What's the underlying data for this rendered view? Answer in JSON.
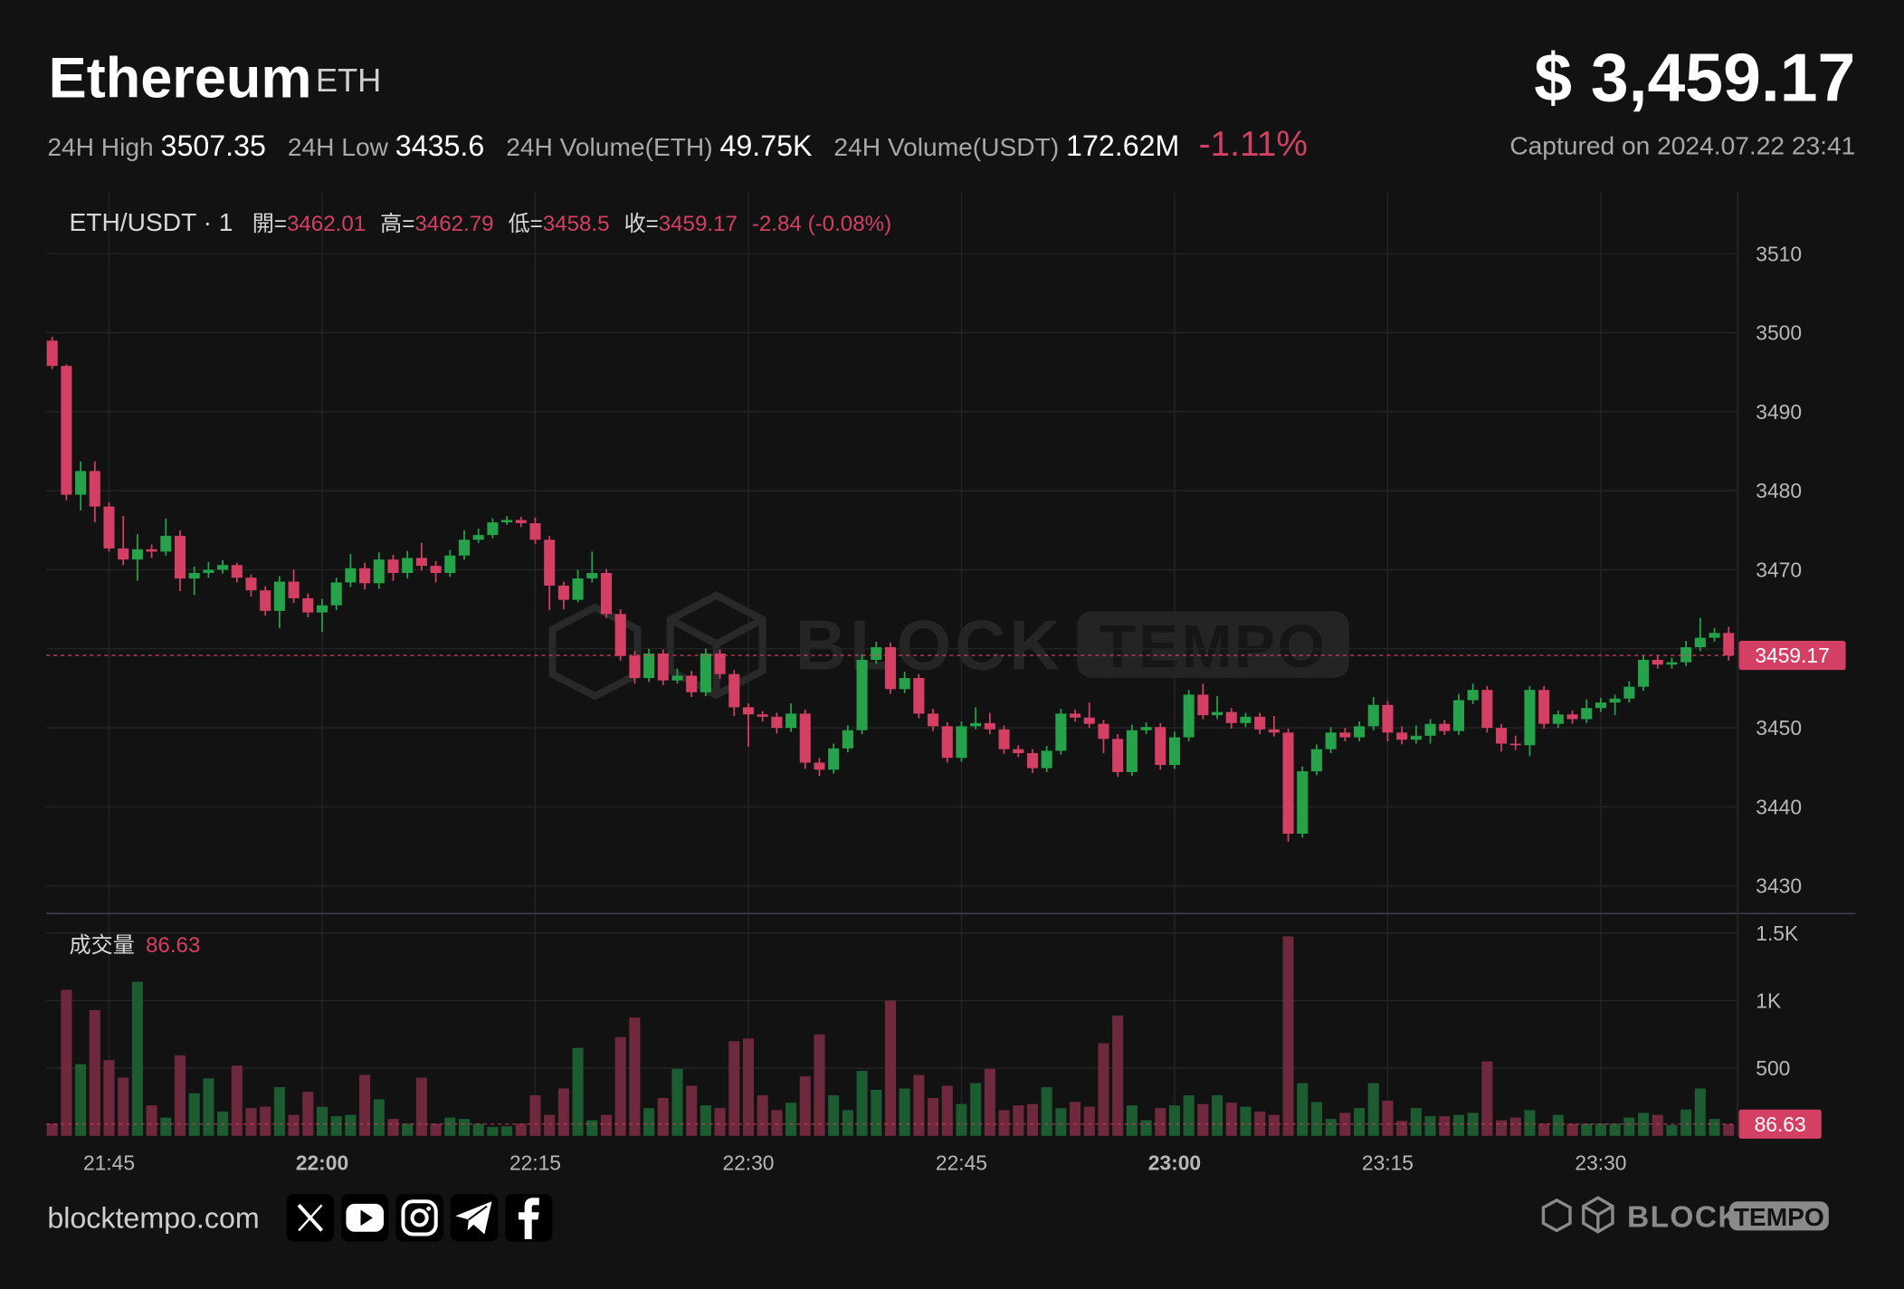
{
  "header": {
    "title": "Ethereum",
    "symbol": "ETH",
    "price": "$ 3,459.17",
    "stats": [
      {
        "label": "24H High",
        "value": 3507.35
      },
      {
        "label": "24H Low",
        "value": 3435.6
      },
      {
        "label": "24H Volume(ETH)",
        "value": "49.75K"
      },
      {
        "label": "24H Volume(USDT)",
        "value": "172.62M"
      }
    ],
    "change": "-1.11%",
    "captured": "Captured on 2024.07.22 23:41"
  },
  "chart_data": {
    "type": "candlestick",
    "legend": {
      "symbol": "ETH/USDT · 1",
      "open_label": "開=",
      "high_label": "高=",
      "low_label": "低=",
      "close_label": "收=",
      "change": "-2.84 (-0.08%)"
    },
    "volume_label": "成交量",
    "categories": [
      null,
      null,
      null,
      null,
      "21:45",
      null,
      null,
      null,
      null,
      null,
      null,
      null,
      null,
      null,
      null,
      null,
      null,
      null,
      null,
      "22:00",
      null,
      null,
      null,
      null,
      null,
      null,
      null,
      null,
      null,
      null,
      null,
      null,
      null,
      null,
      "22:15",
      null,
      null,
      null,
      null,
      null,
      null,
      null,
      null,
      null,
      null,
      null,
      null,
      null,
      null,
      "22:30",
      null,
      null,
      null,
      null,
      null,
      null,
      null,
      null,
      null,
      null,
      null,
      null,
      null,
      null,
      "22:45",
      null,
      null,
      null,
      null,
      null,
      null,
      null,
      null,
      null,
      null,
      null,
      null,
      null,
      null,
      "23:00",
      null,
      null,
      null,
      null,
      null,
      null,
      null,
      null,
      null,
      null,
      null,
      null,
      null,
      null,
      "23:15",
      null,
      null,
      null,
      null,
      null,
      null,
      null,
      null,
      null,
      null,
      null,
      null,
      null,
      null,
      "23:30",
      null,
      null,
      null,
      null,
      null,
      null,
      null,
      null,
      null
    ],
    "open": [
      3499.0,
      3495.8,
      3479.5,
      3482.5,
      3478.0,
      3472.7,
      3471.3,
      3472.6,
      3472.3,
      3474.3,
      3468.9,
      3469.6,
      3470.0,
      3470.6,
      3469.0,
      3467.4,
      3464.8,
      3468.5,
      3466.4,
      3464.6,
      3465.5,
      3468.4,
      3470.2,
      3468.3,
      3471.3,
      3469.6,
      3471.5,
      3470.5,
      3469.6,
      3471.8,
      3473.8,
      3474.4,
      3476.0,
      3476.3,
      3475.9,
      3473.8,
      3468.0,
      3466.2,
      3468.9,
      3469.6,
      3464.4,
      3459.1,
      3456.3,
      3459.4,
      3456.0,
      3456.6,
      3454.5,
      3459.4,
      3456.8,
      3452.6,
      3451.7,
      3451.4,
      3450.0,
      3451.8,
      3445.6,
      3444.7,
      3447.4,
      3449.7,
      3458.6,
      3460.2,
      3454.9,
      3456.3,
      3451.8,
      3450.2,
      3446.2,
      3450.2,
      3450.6,
      3449.8,
      3447.3,
      3446.8,
      3444.9,
      3447.1,
      3451.8,
      3451.3,
      3450.5,
      3448.6,
      3444.4,
      3449.7,
      3450.1,
      3445.3,
      3448.8,
      3454.2,
      3451.6,
      3452.0,
      3450.6,
      3451.4,
      3449.8,
      3449.4,
      3436.6,
      3444.5,
      3447.3,
      3449.4,
      3448.8,
      3450.2,
      3452.9,
      3449.4,
      3448.5,
      3449.0,
      3450.5,
      3449.6,
      3453.5,
      3454.8,
      3450.0,
      3448.0,
      3447.8,
      3454.8,
      3450.5,
      3451.7,
      3451.1,
      3452.5,
      3453.2,
      3453.7,
      3455.2,
      3458.6,
      3458.0,
      3458.3,
      3460.2,
      3461.4,
      3462.01
    ],
    "high": [
      3499.5,
      3496.0,
      3483.7,
      3483.7,
      3478.5,
      3476.8,
      3474.5,
      3473.2,
      3476.5,
      3475.0,
      3470.4,
      3471.0,
      3471.2,
      3470.9,
      3469.4,
      3467.9,
      3469.2,
      3470.0,
      3467.0,
      3466.3,
      3469.0,
      3472.0,
      3470.9,
      3472.2,
      3471.9,
      3472.4,
      3473.4,
      3471.1,
      3472.5,
      3475.0,
      3475.2,
      3476.5,
      3476.8,
      3476.7,
      3476.6,
      3474.3,
      3468.5,
      3470.0,
      3472.3,
      3470.1,
      3465.0,
      3459.7,
      3460.0,
      3459.9,
      3457.5,
      3457.2,
      3460.0,
      3459.9,
      3457.3,
      3453.1,
      3452.1,
      3451.9,
      3453.1,
      3452.3,
      3446.2,
      3448.0,
      3450.3,
      3459.3,
      3460.9,
      3460.8,
      3457.1,
      3456.8,
      3452.4,
      3450.7,
      3450.8,
      3452.6,
      3451.9,
      3450.3,
      3447.8,
      3447.3,
      3447.7,
      3452.4,
      3452.3,
      3453.2,
      3451.0,
      3449.2,
      3450.4,
      3450.7,
      3450.6,
      3449.5,
      3454.8,
      3455.6,
      3454.0,
      3452.5,
      3451.9,
      3451.9,
      3451.5,
      3449.9,
      3445.1,
      3447.9,
      3450.1,
      3450.0,
      3450.8,
      3453.9,
      3453.4,
      3450.2,
      3450.3,
      3451.1,
      3451.0,
      3454.3,
      3455.6,
      3455.3,
      3450.5,
      3449.0,
      3455.3,
      3455.3,
      3452.2,
      3452.2,
      3453.6,
      3453.8,
      3454.2,
      3455.9,
      3459.2,
      3459.1,
      3458.9,
      3461.0,
      3463.9,
      3462.6,
      3462.79
    ],
    "low": [
      3495.4,
      3478.8,
      3477.5,
      3476.0,
      3472.3,
      3470.6,
      3468.6,
      3471.5,
      3471.8,
      3467.3,
      3466.8,
      3469.0,
      3469.5,
      3468.4,
      3466.6,
      3464.2,
      3462.6,
      3465.8,
      3464.0,
      3462.1,
      3464.9,
      3467.8,
      3467.5,
      3467.6,
      3468.6,
      3468.9,
      3469.9,
      3468.4,
      3469.1,
      3471.3,
      3473.4,
      3474.0,
      3475.7,
      3475.4,
      3473.3,
      3464.9,
      3465.0,
      3465.9,
      3468.4,
      3463.9,
      3458.5,
      3455.6,
      3455.8,
      3455.4,
      3455.6,
      3453.9,
      3454.0,
      3456.2,
      3451.5,
      3447.6,
      3450.8,
      3449.3,
      3449.5,
      3444.8,
      3443.9,
      3444.2,
      3446.9,
      3449.2,
      3458.1,
      3454.3,
      3454.4,
      3451.2,
      3449.6,
      3445.6,
      3445.7,
      3449.8,
      3449.2,
      3446.7,
      3446.3,
      3444.3,
      3444.4,
      3446.6,
      3450.8,
      3450.0,
      3446.8,
      3443.8,
      3443.9,
      3449.2,
      3444.7,
      3444.8,
      3448.3,
      3451.1,
      3451.1,
      3449.9,
      3450.1,
      3449.2,
      3448.9,
      3435.6,
      3436.1,
      3444.0,
      3446.8,
      3448.3,
      3448.3,
      3449.7,
      3448.3,
      3447.9,
      3448.0,
      3448.0,
      3449.1,
      3449.1,
      3453.0,
      3449.4,
      3447.0,
      3447.2,
      3446.4,
      3449.9,
      3450.0,
      3450.5,
      3450.6,
      3452.0,
      3451.6,
      3453.2,
      3454.7,
      3457.5,
      3457.5,
      3457.8,
      3459.7,
      3460.9,
      3458.5
    ],
    "close": [
      3495.8,
      3479.5,
      3482.5,
      3478.0,
      3472.7,
      3471.3,
      3472.6,
      3472.3,
      3474.3,
      3468.9,
      3469.6,
      3470.0,
      3470.6,
      3469.0,
      3467.4,
      3464.8,
      3468.5,
      3466.4,
      3464.6,
      3465.5,
      3468.4,
      3470.2,
      3468.3,
      3471.3,
      3469.6,
      3471.5,
      3470.5,
      3469.6,
      3471.8,
      3473.8,
      3474.4,
      3476.0,
      3476.3,
      3475.9,
      3473.8,
      3468.0,
      3466.2,
      3468.9,
      3469.6,
      3464.4,
      3459.1,
      3456.3,
      3459.4,
      3456.0,
      3456.6,
      3454.5,
      3459.4,
      3456.8,
      3452.6,
      3451.7,
      3451.4,
      3450.0,
      3451.8,
      3445.6,
      3444.7,
      3447.4,
      3449.7,
      3458.6,
      3460.2,
      3454.9,
      3456.3,
      3451.8,
      3450.2,
      3446.2,
      3450.2,
      3450.6,
      3449.8,
      3447.3,
      3446.8,
      3444.9,
      3447.1,
      3451.8,
      3451.3,
      3450.5,
      3448.6,
      3444.4,
      3449.7,
      3450.1,
      3445.3,
      3448.8,
      3454.2,
      3451.6,
      3452.0,
      3450.6,
      3451.4,
      3449.8,
      3449.4,
      3436.6,
      3444.5,
      3447.3,
      3449.4,
      3448.8,
      3450.2,
      3452.9,
      3449.4,
      3448.5,
      3449.0,
      3450.5,
      3449.6,
      3453.5,
      3454.8,
      3450.0,
      3448.0,
      3447.8,
      3454.8,
      3450.5,
      3451.7,
      3451.1,
      3452.5,
      3453.2,
      3453.7,
      3455.2,
      3458.6,
      3458.0,
      3458.3,
      3460.2,
      3461.4,
      3462.01,
      3459.17
    ],
    "volume": [
      90,
      1080,
      530,
      930,
      560,
      430,
      1140,
      225,
      135,
      595,
      315,
      425,
      180,
      520,
      205,
      215,
      360,
      155,
      325,
      215,
      145,
      155,
      450,
      270,
      125,
      90,
      430,
      90,
      135,
      125,
      90,
      65,
      70,
      90,
      300,
      155,
      350,
      650,
      115,
      155,
      730,
      875,
      205,
      280,
      495,
      370,
      225,
      205,
      700,
      720,
      300,
      190,
      245,
      440,
      750,
      300,
      190,
      480,
      340,
      1000,
      350,
      450,
      280,
      370,
      235,
      390,
      495,
      190,
      225,
      235,
      360,
      205,
      250,
      215,
      685,
      890,
      225,
      115,
      205,
      225,
      300,
      235,
      300,
      245,
      215,
      180,
      155,
      1475,
      390,
      250,
      125,
      170,
      205,
      390,
      260,
      110,
      205,
      145,
      145,
      155,
      170,
      550,
      115,
      135,
      190,
      90,
      155,
      90,
      90,
      90,
      90,
      135,
      170,
      155,
      80,
      195,
      350,
      125,
      86.63
    ],
    "ylim": [
      3426.5,
      3517.8
    ],
    "yticks": [
      3430,
      3440,
      3450,
      3460,
      3470,
      3480,
      3490,
      3500,
      3510
    ],
    "volume_ylim": [
      0,
      1635
    ],
    "volume_yticks": [
      500,
      {
        "value": 1000,
        "label": "1K"
      },
      {
        "value": 1500,
        "label": "1.5K"
      }
    ],
    "up_color": "#26a24b",
    "down_color": "#d43f64",
    "volume_up_color": "#1d5b31",
    "volume_down_color": "#6e2a3c",
    "grid": true
  },
  "footer": {
    "site": "blocktempo.com",
    "brand": [
      "BLOCK",
      "TEMPO"
    ]
  }
}
